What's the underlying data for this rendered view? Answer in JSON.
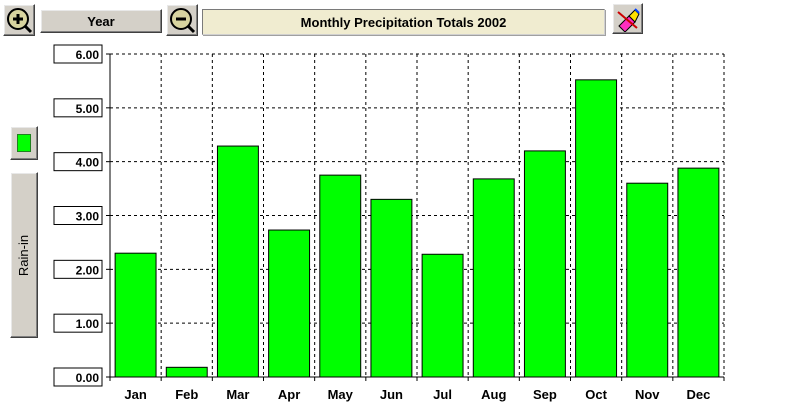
{
  "toolbar": {
    "zoom_in_icon": "zoom-in-icon",
    "zoom_out_icon": "zoom-out-icon",
    "period_button_label": "Year",
    "title": "Monthly Precipitation Totals 2002",
    "tool_icon": "eraser-pencil-icon"
  },
  "legend": {
    "series_name": "Rain-in",
    "swatch_color": "#00ff00"
  },
  "chart_data": {
    "type": "bar",
    "title": "Monthly Precipitation Totals 2002",
    "xlabel": "",
    "ylabel": "",
    "ylim": [
      0,
      6
    ],
    "yticks": [
      "0.00",
      "1.00",
      "2.00",
      "3.00",
      "4.00",
      "5.00",
      "6.00"
    ],
    "grid": true,
    "categories": [
      "Jan",
      "Feb",
      "Mar",
      "Apr",
      "May",
      "Jun",
      "Jul",
      "Aug",
      "Sep",
      "Oct",
      "Nov",
      "Dec"
    ],
    "series": [
      {
        "name": "Rain-in",
        "color": "#00ff00",
        "values": [
          2.3,
          0.18,
          4.29,
          2.73,
          3.75,
          3.3,
          2.28,
          3.68,
          4.2,
          5.52,
          3.6,
          3.88
        ]
      }
    ]
  }
}
